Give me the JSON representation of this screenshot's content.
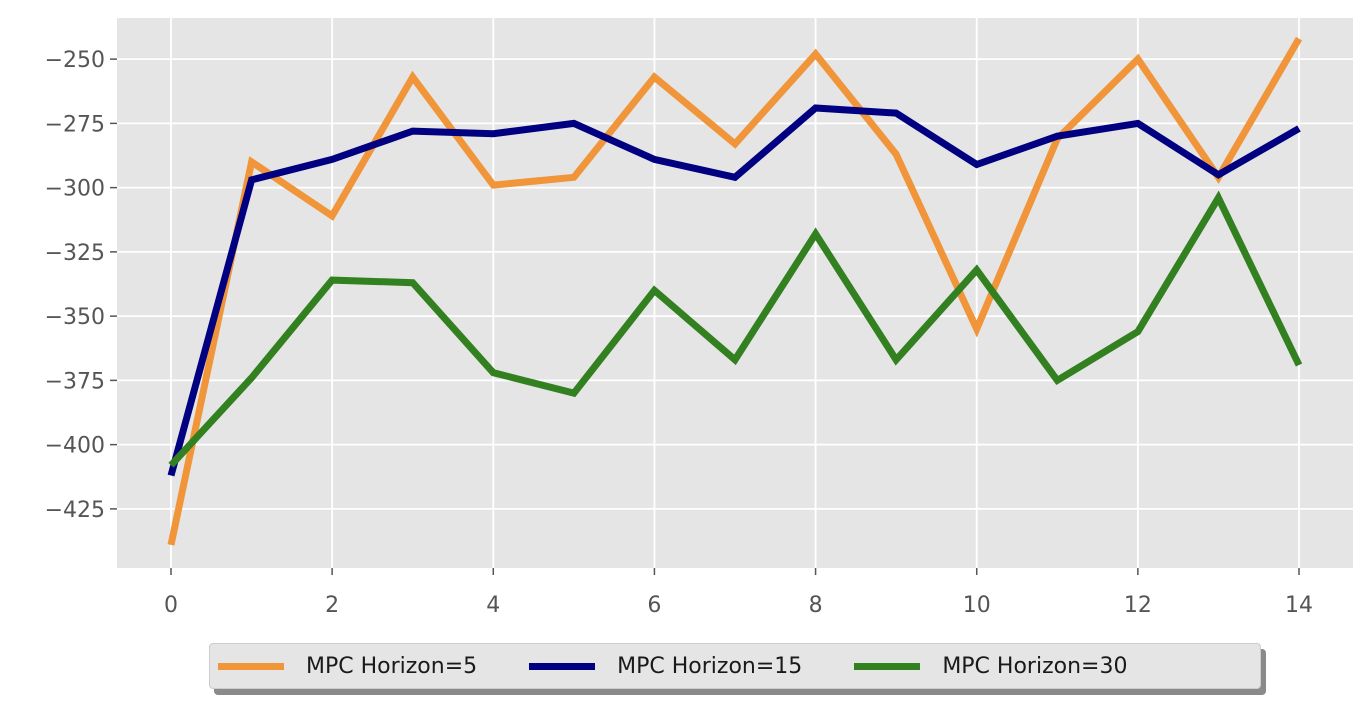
{
  "chart_data": {
    "type": "line",
    "title": "",
    "xlabel": "",
    "ylabel": "",
    "x": [
      0,
      1,
      2,
      3,
      4,
      5,
      6,
      7,
      8,
      9,
      10,
      11,
      12,
      13,
      14
    ],
    "xlim": [
      -0.67,
      14.67
    ],
    "ylim": [
      -448,
      -234
    ],
    "x_ticks": [
      0,
      2,
      4,
      6,
      8,
      10,
      12,
      14
    ],
    "y_ticks": [
      -425,
      -400,
      -375,
      -350,
      -325,
      -300,
      -275,
      -250
    ],
    "x_tick_labels": [
      "0",
      "2",
      "4",
      "6",
      "8",
      "10",
      "12",
      "14"
    ],
    "y_tick_labels": [
      "−425",
      "−400",
      "−375",
      "−350",
      "−325",
      "−300",
      "−275",
      "−250"
    ],
    "grid": true,
    "legend_position": "bottom-center",
    "series": [
      {
        "name": "MPC Horizon=5",
        "color": "#f0953a",
        "values": [
          -439,
          -290,
          -311,
          -257,
          -299,
          -296,
          -257,
          -283,
          -248,
          -287,
          -355,
          -281,
          -250,
          -296,
          -242
        ]
      },
      {
        "name": "MPC Horizon=15",
        "color": "#000080",
        "values": [
          -412,
          -297,
          -289,
          -278,
          -279,
          -275,
          -289,
          -296,
          -269,
          -271,
          -291,
          -280,
          -275,
          -295,
          -277
        ]
      },
      {
        "name": "MPC Horizon=30",
        "color": "#338020",
        "values": [
          -408,
          -374,
          -336,
          -337,
          -372,
          -380,
          -340,
          -367,
          -318,
          -367,
          -332,
          -375,
          -356,
          -304,
          -369
        ]
      }
    ]
  }
}
